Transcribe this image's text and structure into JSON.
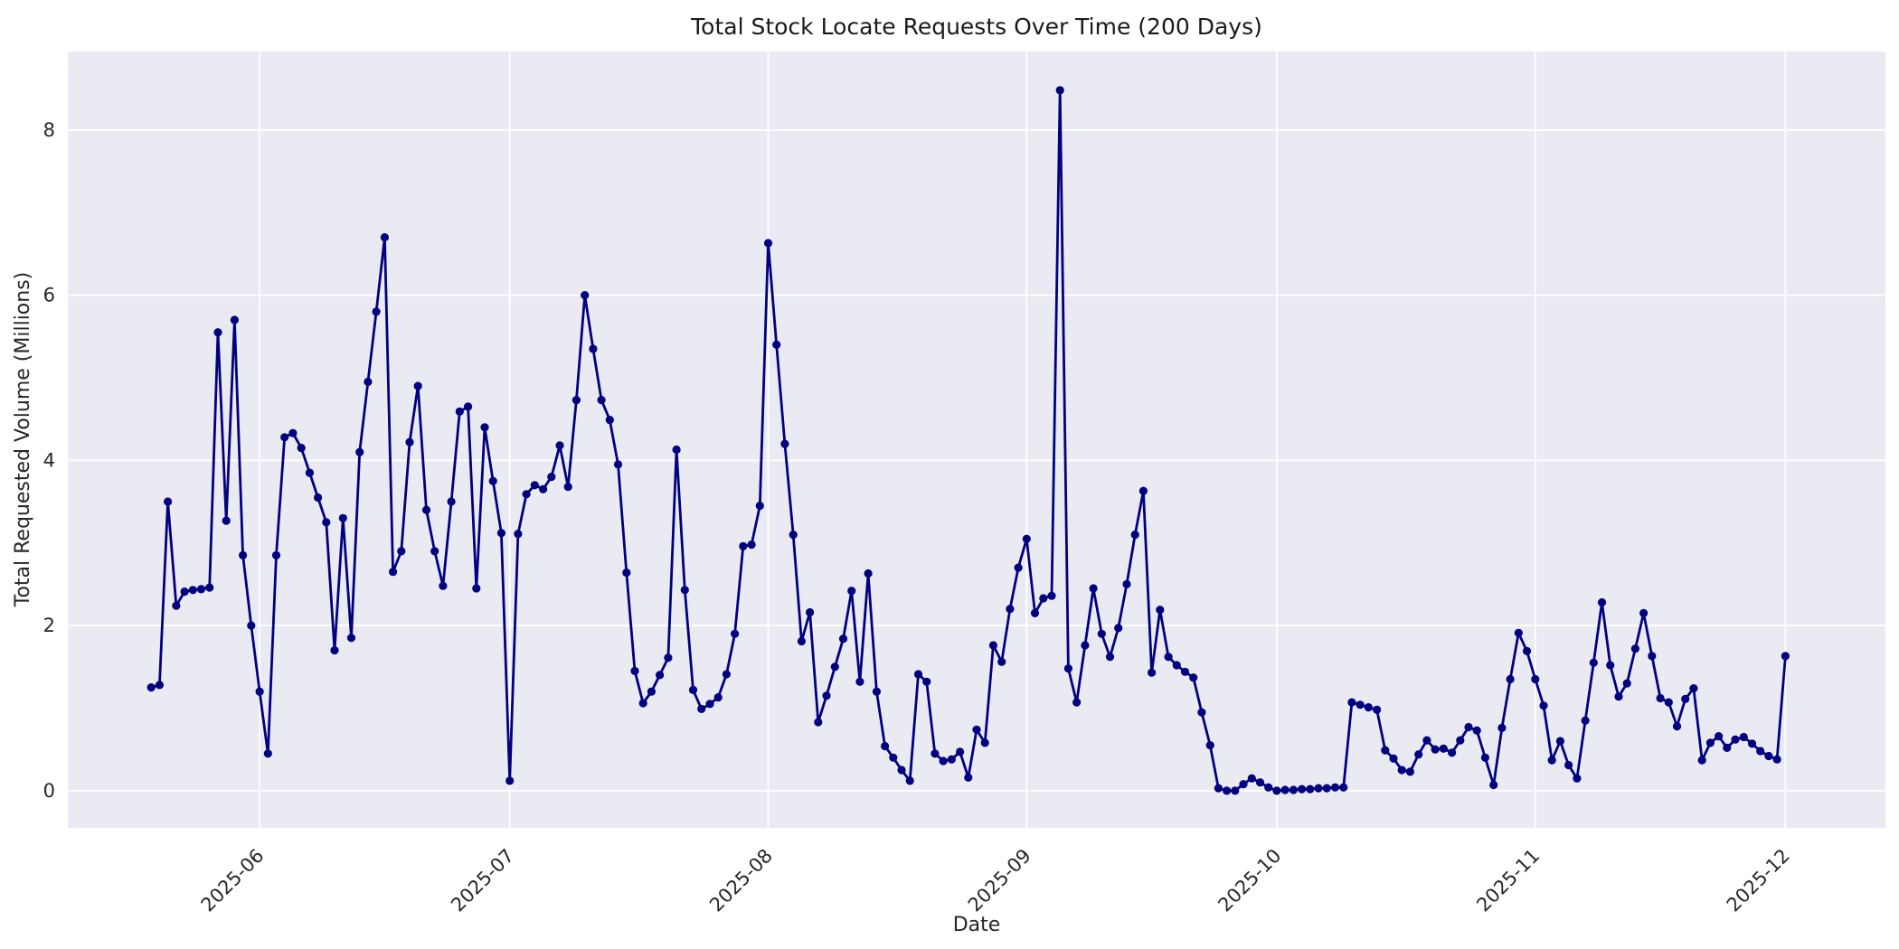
{
  "figure": {
    "background_color": "#ffffff",
    "axes_background_color": "#eaeaf2",
    "gridline_color": "#ffffff",
    "line_color": "#000080",
    "marker_color": "#000080",
    "text_color": "#262626"
  },
  "chart_data": {
    "type": "line",
    "title": "Total Stock Locate Requests Over Time (200 Days)",
    "xlabel": "Date",
    "ylabel": "Total Requested Volume (Millions)",
    "legend": false,
    "grid": true,
    "marker": "circle",
    "y_ticks": [
      "0",
      "2",
      "4",
      "6",
      "8"
    ],
    "y_tick_values": [
      0,
      2,
      4,
      6,
      8
    ],
    "x_tick_labels": [
      "2025-06",
      "2025-07",
      "2025-08",
      "2025-09",
      "2025-10",
      "2025-11",
      "2025-12"
    ],
    "x_tick_dates": [
      "2025-06-01",
      "2025-07-01",
      "2025-08-01",
      "2025-09-01",
      "2025-10-01",
      "2025-11-01",
      "2025-12-01"
    ],
    "ylim": [
      -0.45,
      8.95
    ],
    "xlim_dates": [
      "2025-05-09",
      "2025-12-13"
    ],
    "series": [
      {
        "name": "Total Requested Volume (Millions)",
        "color": "#000080",
        "start_date": "2025-05-19",
        "frequency": "daily",
        "values": [
          1.25,
          1.28,
          3.5,
          2.24,
          2.41,
          2.43,
          2.44,
          2.46,
          5.55,
          3.27,
          5.7,
          2.85,
          2.0,
          1.2,
          0.45,
          2.85,
          4.28,
          4.33,
          4.15,
          3.85,
          3.55,
          3.25,
          1.7,
          3.3,
          1.85,
          4.1,
          4.95,
          5.8,
          6.7,
          2.65,
          2.9,
          4.22,
          4.9,
          3.4,
          2.9,
          2.48,
          3.5,
          4.59,
          4.65,
          2.45,
          4.4,
          3.75,
          3.12,
          0.12,
          3.11,
          3.59,
          3.7,
          3.65,
          3.8,
          4.18,
          3.68,
          4.73,
          6.0,
          5.35,
          4.73,
          4.49,
          3.95,
          2.64,
          1.45,
          1.06,
          1.2,
          1.4,
          1.61,
          4.13,
          2.43,
          1.22,
          0.99,
          1.05,
          1.13,
          1.41,
          1.9,
          2.96,
          2.98,
          3.45,
          6.63,
          5.4,
          4.2,
          3.1,
          1.81,
          2.16,
          0.83,
          1.15,
          1.5,
          1.84,
          2.42,
          1.32,
          2.63,
          1.2,
          0.54,
          0.4,
          0.25,
          0.12,
          1.41,
          1.32,
          0.45,
          0.36,
          0.38,
          0.47,
          0.16,
          0.74,
          0.58,
          1.76,
          1.56,
          2.2,
          2.7,
          3.05,
          2.15,
          2.33,
          2.36,
          8.48,
          1.48,
          1.07,
          1.76,
          2.45,
          1.9,
          1.62,
          1.97,
          2.5,
          3.1,
          3.63,
          1.43,
          2.19,
          1.62,
          1.52,
          1.44,
          1.37,
          0.95,
          0.55,
          0.03,
          0.0,
          0.0,
          0.08,
          0.15,
          0.1,
          0.04,
          0.0,
          0.01,
          0.01,
          0.02,
          0.02,
          0.03,
          0.03,
          0.04,
          0.04,
          1.07,
          1.04,
          1.01,
          0.98,
          0.49,
          0.39,
          0.25,
          0.23,
          0.44,
          0.61,
          0.5,
          0.51,
          0.46,
          0.61,
          0.77,
          0.73,
          0.4,
          0.07,
          0.76,
          1.35,
          1.91,
          1.69,
          1.35,
          1.03,
          0.37,
          0.6,
          0.31,
          0.15,
          0.85,
          1.55,
          2.28,
          1.52,
          1.14,
          1.3,
          1.72,
          2.15,
          1.63,
          1.12,
          1.07,
          0.78,
          1.11,
          1.24,
          0.37,
          0.58,
          0.66,
          0.52,
          0.62,
          0.65,
          0.57,
          0.48,
          0.42,
          0.38,
          1.63
        ]
      }
    ]
  }
}
